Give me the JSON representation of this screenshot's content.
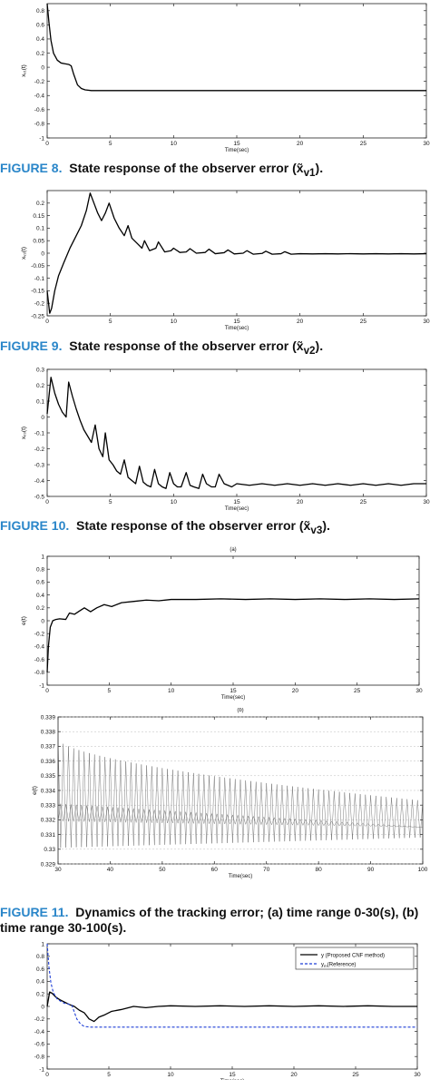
{
  "captions": {
    "fig8": {
      "label": "FIGURE 8.",
      "text": "State response of the observer error (x̃",
      "sub": "v1",
      "end": ")."
    },
    "fig9": {
      "label": "FIGURE 9.",
      "text": "State response of the observer error (x̃",
      "sub": "v2",
      "end": ")."
    },
    "fig10": {
      "label": "FIGURE 10.",
      "text": "State response of the observer error (x̃",
      "sub": "v3",
      "end": ")."
    },
    "fig11": {
      "label": "FIGURE 11.",
      "text": "Dynamics of the tracking error; (a) time range 0-30(s), (b) time range 30-100(s)."
    }
  },
  "chart_data": [
    {
      "type": "line",
      "xlabel": "Time(sec)",
      "ylabel": "xᵥ₁(t)",
      "xlim": [
        0,
        30
      ],
      "ylim": [
        -1,
        0.9
      ],
      "xticks": [
        0,
        5,
        10,
        15,
        20,
        25,
        30
      ],
      "yticks": [
        0.8,
        0.6,
        0.4,
        0.2,
        0,
        -0.2,
        -0.4,
        -0.6,
        -0.8,
        -1
      ],
      "series": [
        {
          "x": [
            0,
            0.15,
            0.3,
            0.5,
            0.8,
            1.1,
            1.4,
            1.7,
            1.9,
            2.1,
            2.4,
            2.7,
            3.0,
            3.5,
            5,
            10,
            15,
            20,
            25,
            30
          ],
          "y": [
            0.9,
            0.62,
            0.38,
            0.2,
            0.1,
            0.06,
            0.05,
            0.04,
            0.02,
            -0.1,
            -0.25,
            -0.3,
            -0.32,
            -0.33,
            -0.33,
            -0.33,
            -0.33,
            -0.33,
            -0.33,
            -0.33
          ]
        }
      ]
    },
    {
      "type": "line",
      "xlabel": "Time(sec)",
      "ylabel": "xᵥ₂(t)",
      "xlim": [
        0,
        30
      ],
      "ylim": [
        -0.25,
        0.25
      ],
      "xticks": [
        0,
        5,
        10,
        15,
        20,
        25,
        30
      ],
      "yticks": [
        0.2,
        0.15,
        0.1,
        0.05,
        0,
        -0.05,
        -0.1,
        -0.15,
        -0.2,
        -0.25
      ],
      "series": [
        {
          "x": [
            0,
            0.2,
            0.35,
            0.6,
            0.9,
            1.3,
            1.8,
            2.2,
            2.7,
            3.1,
            3.4,
            3.7,
            4.0,
            4.3,
            4.6,
            4.9,
            5.3,
            5.7,
            6.1,
            6.4,
            6.7,
            7.1,
            7.5,
            7.7,
            8.1,
            8.6,
            8.8,
            9.3,
            9.8,
            10.0,
            10.5,
            11.0,
            11.3,
            11.8,
            12.5,
            12.8,
            13.3,
            14,
            14.3,
            14.8,
            15.5,
            15.8,
            16.3,
            17,
            17.3,
            17.8,
            18.5,
            18.8,
            19.3,
            20,
            21,
            22,
            23,
            24,
            25,
            26,
            27,
            28,
            29,
            30
          ],
          "y": [
            -0.15,
            -0.24,
            -0.22,
            -0.15,
            -0.09,
            -0.04,
            0.02,
            0.06,
            0.11,
            0.17,
            0.24,
            0.2,
            0.16,
            0.13,
            0.16,
            0.2,
            0.14,
            0.1,
            0.07,
            0.11,
            0.06,
            0.04,
            0.02,
            0.05,
            0.01,
            0.02,
            0.045,
            0.005,
            0.01,
            0.02,
            0.003,
            0.005,
            0.018,
            0.0,
            0.003,
            0.016,
            -0.002,
            0.002,
            0.013,
            -0.003,
            0.0,
            0.01,
            -0.004,
            -0.001,
            0.008,
            -0.004,
            -0.002,
            0.006,
            -0.004,
            -0.002,
            -0.003,
            -0.002,
            -0.003,
            -0.002,
            -0.003,
            -0.002,
            -0.003,
            -0.002,
            -0.003,
            -0.002
          ]
        }
      ]
    },
    {
      "type": "line",
      "xlabel": "Time(sec)",
      "ylabel": "xᵥ₃(t)",
      "xlim": [
        0,
        30
      ],
      "ylim": [
        -0.5,
        0.3
      ],
      "xticks": [
        0,
        5,
        10,
        15,
        20,
        25,
        30
      ],
      "yticks": [
        0.3,
        0.2,
        0.1,
        0,
        -0.1,
        -0.2,
        -0.3,
        -0.4,
        -0.5
      ],
      "series": [
        {
          "x": [
            0,
            0.3,
            0.6,
            0.9,
            1.2,
            1.5,
            1.7,
            2.0,
            2.3,
            2.6,
            2.9,
            3.2,
            3.5,
            3.8,
            4.1,
            4.4,
            4.6,
            4.9,
            5.2,
            5.5,
            5.8,
            6.1,
            6.4,
            6.7,
            7.0,
            7.3,
            7.6,
            7.9,
            8.2,
            8.5,
            8.8,
            9.1,
            9.4,
            9.7,
            10,
            10.3,
            10.6,
            11,
            11.3,
            11.6,
            12,
            12.3,
            12.6,
            13,
            13.3,
            13.6,
            14,
            14.3,
            14.6,
            15,
            16,
            17,
            18,
            19,
            20,
            21,
            22,
            23,
            24,
            25,
            26,
            27,
            28,
            29,
            30
          ],
          "y": [
            0.02,
            0.25,
            0.15,
            0.08,
            0.03,
            0.0,
            0.22,
            0.13,
            0.05,
            -0.02,
            -0.08,
            -0.12,
            -0.16,
            -0.05,
            -0.2,
            -0.25,
            -0.1,
            -0.27,
            -0.3,
            -0.34,
            -0.36,
            -0.27,
            -0.38,
            -0.4,
            -0.42,
            -0.31,
            -0.41,
            -0.43,
            -0.44,
            -0.33,
            -0.42,
            -0.44,
            -0.45,
            -0.35,
            -0.42,
            -0.44,
            -0.44,
            -0.35,
            -0.43,
            -0.44,
            -0.45,
            -0.36,
            -0.42,
            -0.44,
            -0.44,
            -0.36,
            -0.42,
            -0.43,
            -0.44,
            -0.42,
            -0.43,
            -0.42,
            -0.43,
            -0.42,
            -0.43,
            -0.42,
            -0.43,
            -0.42,
            -0.43,
            -0.42,
            -0.43,
            -0.42,
            -0.43,
            -0.42,
            -0.42
          ]
        }
      ]
    },
    {
      "type": "line",
      "title": "(a)",
      "xlabel": "Time(sec)",
      "ylabel": "e(t)",
      "xlim": [
        0,
        30
      ],
      "ylim": [
        -1,
        1
      ],
      "xticks": [
        0,
        5,
        10,
        15,
        20,
        25,
        30
      ],
      "yticks": [
        1,
        0.8,
        0.6,
        0.4,
        0.2,
        0,
        -0.2,
        -0.4,
        -0.6,
        -0.8,
        -1
      ],
      "series": [
        {
          "x": [
            0,
            0.1,
            0.25,
            0.45,
            0.7,
            1.0,
            1.5,
            1.8,
            2.2,
            2.6,
            3.0,
            3.5,
            4.0,
            4.6,
            5.2,
            6,
            7,
            8,
            9,
            10,
            12,
            14,
            16,
            18,
            20,
            22,
            24,
            26,
            28,
            30
          ],
          "y": [
            -0.8,
            -0.4,
            -0.1,
            0.0,
            0.02,
            0.03,
            0.02,
            0.12,
            0.1,
            0.15,
            0.2,
            0.14,
            0.2,
            0.25,
            0.22,
            0.28,
            0.3,
            0.32,
            0.31,
            0.33,
            0.33,
            0.34,
            0.33,
            0.34,
            0.33,
            0.34,
            0.33,
            0.34,
            0.33,
            0.34
          ]
        }
      ]
    },
    {
      "type": "line",
      "title": "(b)",
      "xlabel": "Time(sec)",
      "ylabel": "e(t)",
      "xlim": [
        30,
        100
      ],
      "ylim": [
        0.329,
        0.339
      ],
      "xticks": [
        30,
        40,
        50,
        60,
        70,
        80,
        90,
        100
      ],
      "yticks": [
        0.339,
        0.338,
        0.337,
        0.336,
        0.335,
        0.334,
        0.333,
        0.332,
        0.331,
        0.33,
        0.329
      ],
      "series": [
        {
          "x": [
            30,
            100
          ],
          "y": [
            0.3325,
            0.3315
          ],
          "upper": [
            0.3375,
            0.3333
          ],
          "lower": [
            0.3301,
            0.3308
          ],
          "oscillation_count": 70
        }
      ]
    },
    {
      "type": "line",
      "xlabel": "Time(sec)",
      "xlim": [
        0,
        30
      ],
      "ylim": [
        -1,
        1
      ],
      "xticks": [
        0,
        5,
        10,
        15,
        20,
        25,
        30
      ],
      "yticks": [
        1,
        0.8,
        0.6,
        0.4,
        0.2,
        0,
        -0.2,
        -0.4,
        -0.6,
        -0.8,
        -1
      ],
      "legend": "top-right",
      "series": [
        {
          "name": "y (Proposed CNF method)",
          "color": "#000000",
          "x": [
            0,
            0.2,
            0.4,
            0.7,
            1.0,
            1.4,
            1.8,
            2.2,
            2.6,
            3.0,
            3.4,
            3.8,
            4.2,
            4.6,
            5.2,
            6,
            7,
            8,
            9,
            10,
            12,
            14,
            16,
            18,
            20,
            22,
            24,
            26,
            28,
            30
          ],
          "y": [
            0.0,
            0.23,
            0.21,
            0.15,
            0.11,
            0.07,
            0.03,
            0.0,
            -0.06,
            -0.1,
            -0.2,
            -0.24,
            -0.17,
            -0.14,
            -0.08,
            -0.05,
            0.0,
            -0.02,
            0.0,
            0.01,
            0.0,
            0.01,
            0.0,
            0.01,
            0.0,
            0.01,
            0.0,
            0.01,
            0.0,
            0.0
          ]
        },
        {
          "name": "y",
          "name_sub": "m",
          "name_suffix": "(Reference)",
          "color": "#1f3fd6",
          "dashed": true,
          "x": [
            0,
            0.15,
            0.3,
            0.5,
            0.8,
            1.1,
            1.4,
            1.7,
            2.0,
            2.4,
            2.7,
            3.0,
            3.5,
            5,
            10,
            15,
            20,
            25,
            30
          ],
          "y": [
            1.0,
            0.62,
            0.38,
            0.22,
            0.12,
            0.08,
            0.05,
            0.04,
            0.02,
            -0.2,
            -0.28,
            -0.32,
            -0.33,
            -0.33,
            -0.33,
            -0.33,
            -0.33,
            -0.33,
            -0.33
          ]
        }
      ]
    }
  ]
}
